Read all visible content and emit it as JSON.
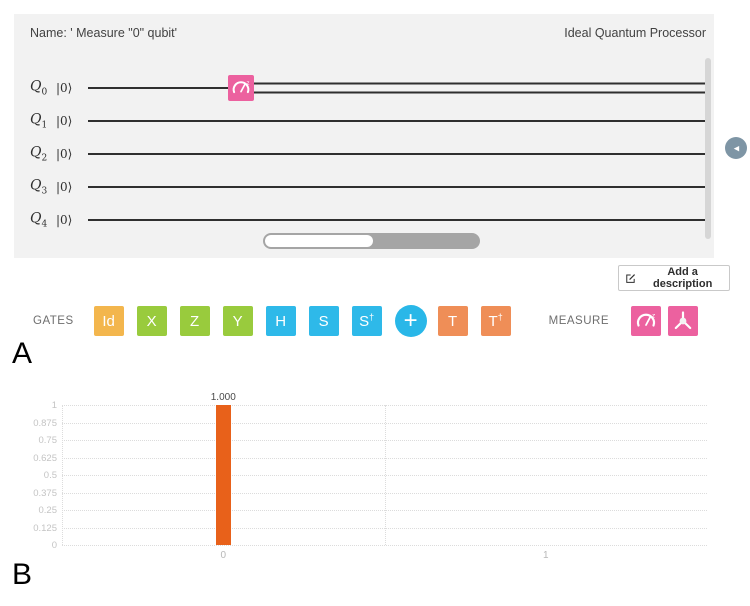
{
  "composer": {
    "name": "Name: ' Measure \"0\" qubit'",
    "processor": "Ideal Quantum Processor",
    "qubits": [
      {
        "label": "Q",
        "sub": "0",
        "ket": "|0⟩"
      },
      {
        "label": "Q",
        "sub": "1",
        "ket": "|0⟩"
      },
      {
        "label": "Q",
        "sub": "2",
        "ket": "|0⟩"
      },
      {
        "label": "Q",
        "sub": "3",
        "ket": "|0⟩"
      },
      {
        "label": "Q",
        "sub": "4",
        "ket": "|0⟩"
      }
    ],
    "placed_gates": [
      {
        "qubit": 0,
        "type": "measure-z",
        "color": "#ec619f"
      }
    ],
    "description_button": "Add a description",
    "collapse_icon": "◀"
  },
  "palette": {
    "gates_label": "GATES",
    "measure_label": "MEASURE",
    "gates": [
      {
        "base": "Id",
        "sup": "",
        "color": "#f3b64d",
        "shape": "square"
      },
      {
        "base": "X",
        "sup": "",
        "color": "#99cb3d",
        "shape": "square"
      },
      {
        "base": "Z",
        "sup": "",
        "color": "#99cb3d",
        "shape": "square"
      },
      {
        "base": "Y",
        "sup": "",
        "color": "#99cb3d",
        "shape": "square"
      },
      {
        "base": "H",
        "sup": "",
        "color": "#2eb9e9",
        "shape": "square"
      },
      {
        "base": "S",
        "sup": "",
        "color": "#2eb9e9",
        "shape": "square"
      },
      {
        "base": "S",
        "sup": "†",
        "color": "#2eb9e9",
        "shape": "square"
      },
      {
        "base": "+",
        "sup": "",
        "color": "#29b7e8",
        "shape": "circle"
      },
      {
        "base": "T",
        "sup": "",
        "color": "#ef8e57",
        "shape": "square"
      },
      {
        "base": "T",
        "sup": "†",
        "color": "#ef8e57",
        "shape": "square"
      }
    ],
    "measure_tools": [
      {
        "name": "measure-z-gauge",
        "color": "#ec619f"
      },
      {
        "name": "measure-bloch",
        "color": "#ec619f"
      }
    ]
  },
  "section_labels": {
    "a": "A",
    "b": "B"
  },
  "chart_data": {
    "type": "bar",
    "categories": [
      "0",
      "1"
    ],
    "values": [
      1.0,
      0
    ],
    "bar_labels": [
      "1.000",
      ""
    ],
    "yticks": [
      1,
      0.875,
      0.75,
      0.625,
      0.5,
      0.375,
      0.25,
      0.125,
      0
    ],
    "ylim": [
      0,
      1
    ],
    "bar_color": "#e8611a",
    "title": "",
    "xlabel": "",
    "ylabel": "",
    "grid": "dotted horizontal lines at each ytick; dotted vertical lines at category boundaries",
    "legend": "none"
  }
}
